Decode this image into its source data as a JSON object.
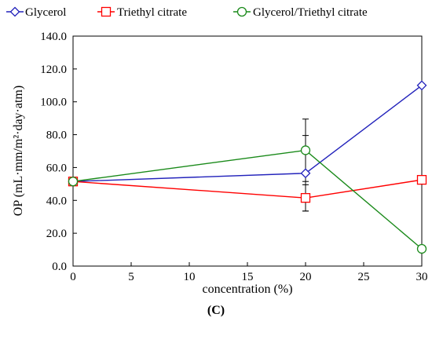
{
  "chart_data": {
    "type": "line",
    "xlabel": "concentration (%)",
    "ylabel": "OP (mL·mm/m²·day·atm)",
    "caption": "(C)",
    "xlim": [
      0,
      30
    ],
    "ylim": [
      0,
      140
    ],
    "x_ticks": [
      "0",
      "5",
      "10",
      "15",
      "20",
      "25",
      "30"
    ],
    "y_ticks": [
      "0.0",
      "20.0",
      "40.0",
      "60.0",
      "80.0",
      "100.0",
      "120.0",
      "140.0"
    ],
    "legend_position": "top",
    "grid": false,
    "series": [
      {
        "name": "Glycerol",
        "color": "#2222bb",
        "marker": "diamond",
        "points": [
          {
            "x": 0,
            "y": 51.5,
            "err": 1.5
          },
          {
            "x": 20,
            "y": 56.5,
            "err": 23
          },
          {
            "x": 30,
            "y": 110,
            "err": 0
          }
        ]
      },
      {
        "name": "Triethyl citrate",
        "color": "#ff0000",
        "marker": "square",
        "points": [
          {
            "x": 0,
            "y": 51.5,
            "err": 1.5
          },
          {
            "x": 20,
            "y": 41.5,
            "err": 8
          },
          {
            "x": 30,
            "y": 52.5,
            "err": 0
          }
        ]
      },
      {
        "name": "Glycerol/Triethyl citrate",
        "color": "#1a8a1a",
        "marker": "circle",
        "points": [
          {
            "x": 0,
            "y": 51.5,
            "err": 1.5
          },
          {
            "x": 20,
            "y": 70.5,
            "err": 19
          },
          {
            "x": 30,
            "y": 10.5,
            "err": 0
          }
        ]
      }
    ]
  }
}
